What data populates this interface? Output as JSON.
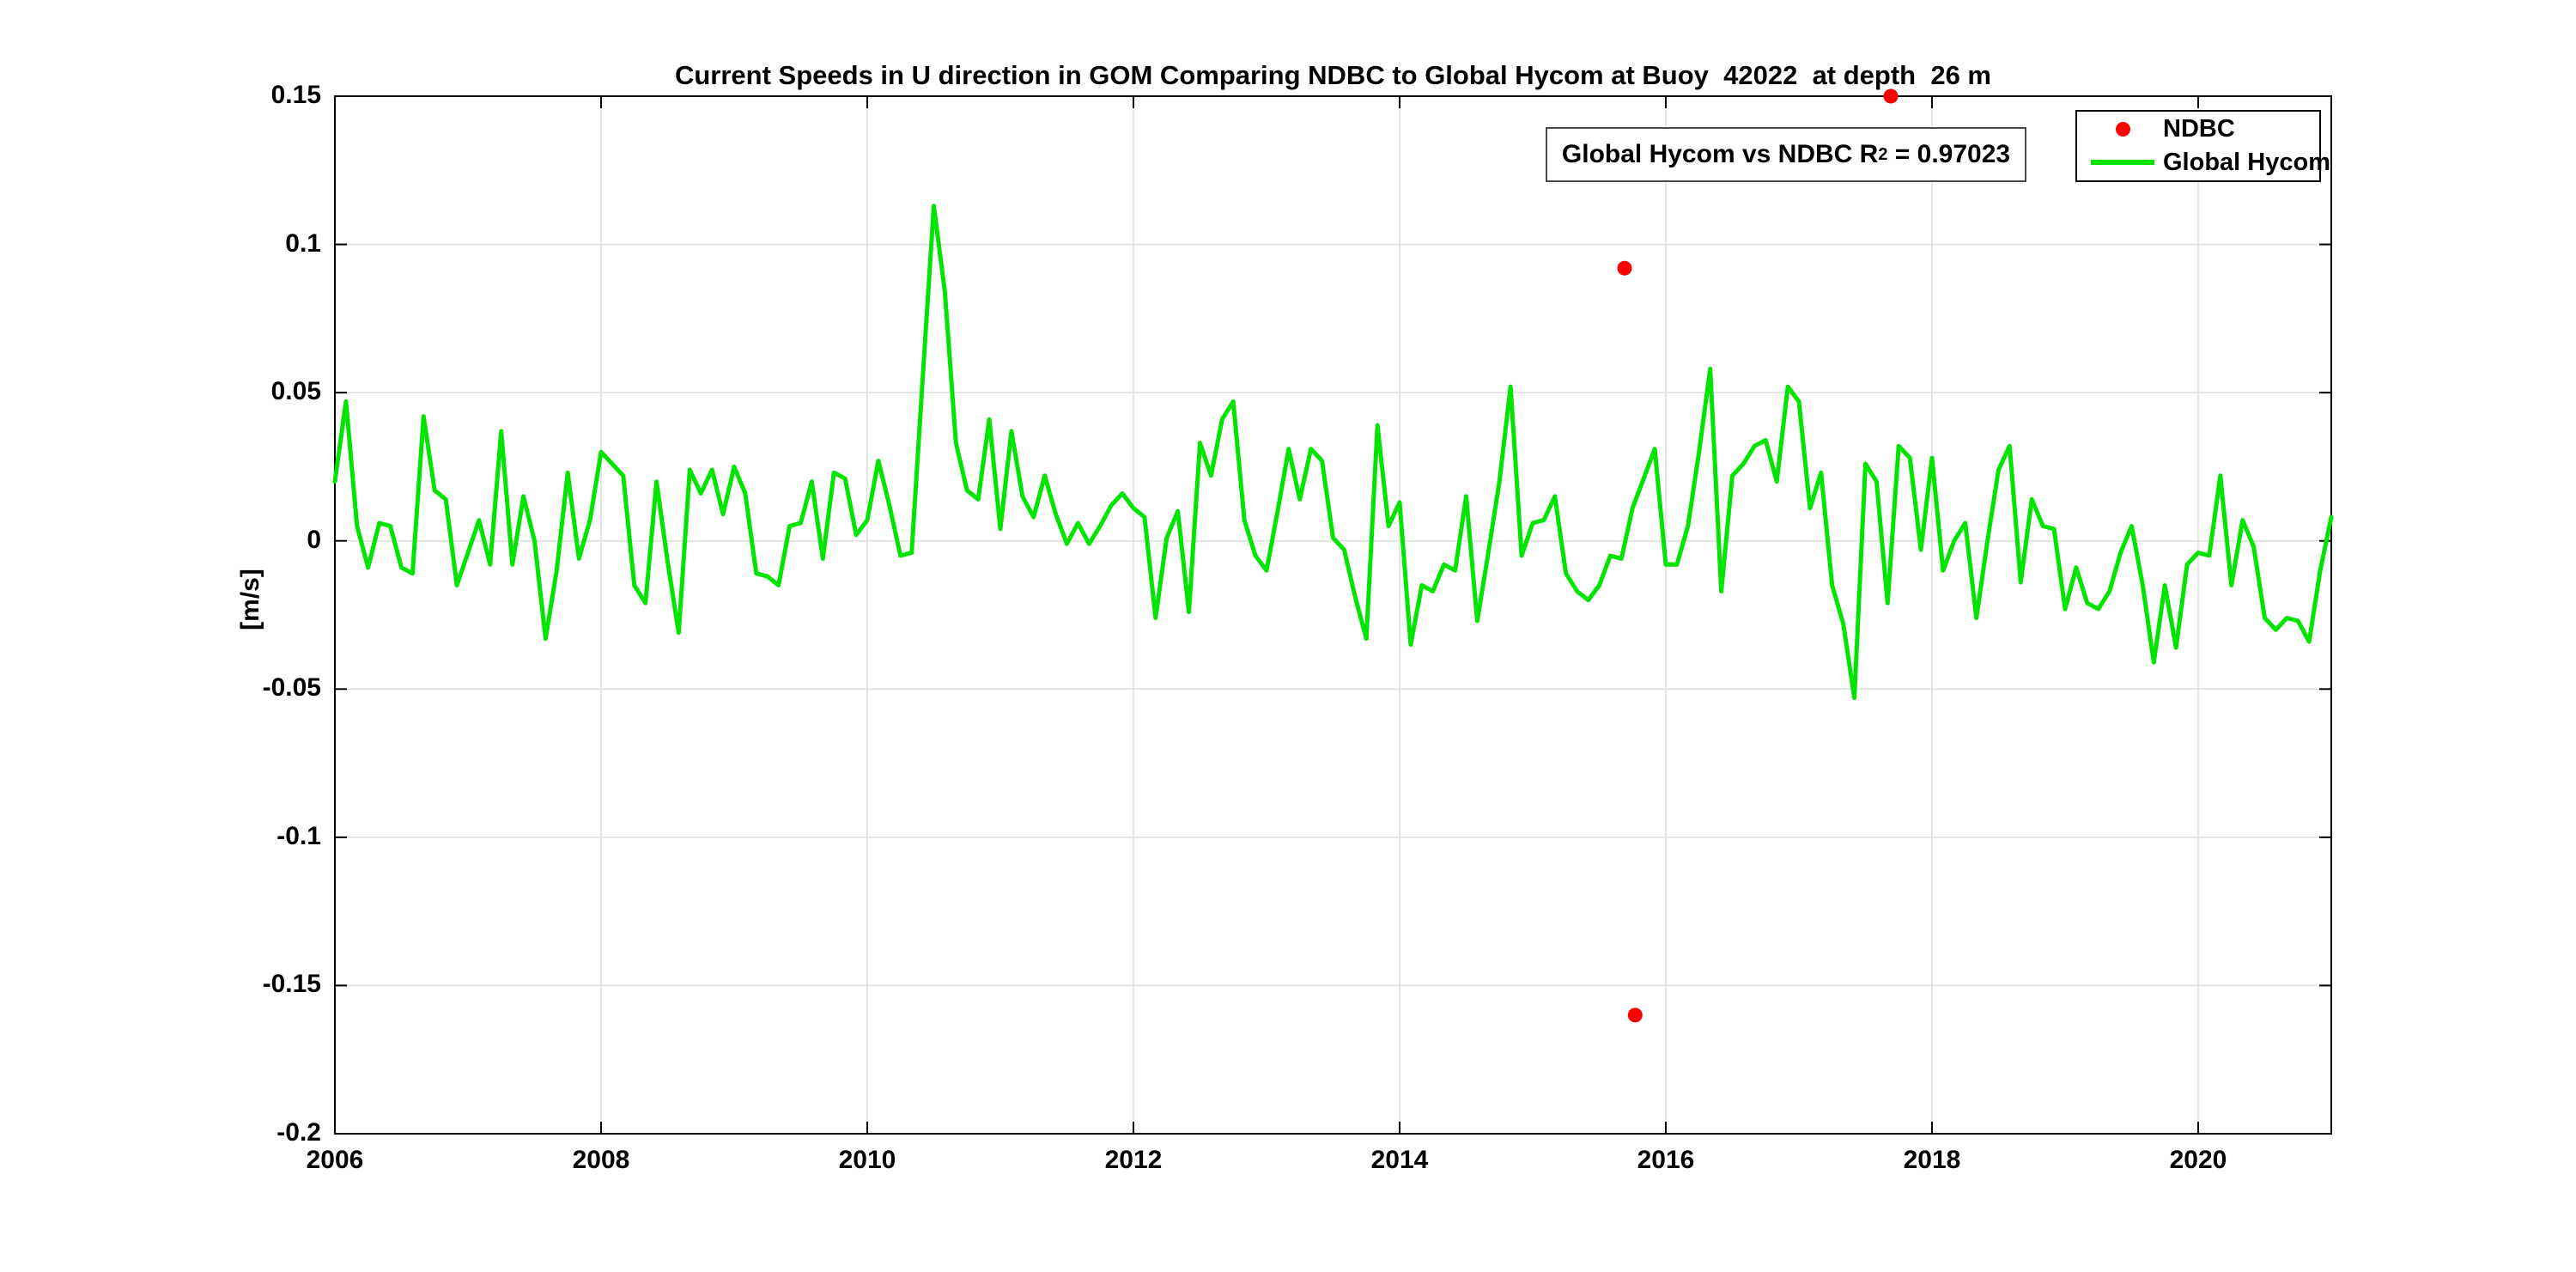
{
  "title": "Current Speeds in U direction in GOM Comparing NDBC to Global Hycom at Buoy  42022  at depth  26 m",
  "annotation": {
    "prefix": "Global Hycom vs NDBC R",
    "sup": "2",
    "suffix": " = 0.97023"
  },
  "legend": {
    "position": "upper right",
    "items": [
      {
        "label": "NDBC",
        "marker": "dot",
        "color": "#ff0000"
      },
      {
        "label": "Global Hycom",
        "marker": "line",
        "color": "#00e400"
      }
    ]
  },
  "axes": {
    "ylabel": "[m/s]",
    "x_ticks": [
      2006,
      2008,
      2010,
      2012,
      2014,
      2016,
      2018,
      2020
    ],
    "x_tick_labels": [
      "2006",
      "2008",
      "2010",
      "2012",
      "2014",
      "2016",
      "2018",
      "2020"
    ],
    "y_ticks": [
      -0.2,
      -0.15,
      -0.1,
      -0.05,
      0,
      0.05,
      0.1,
      0.15
    ],
    "y_tick_labels": [
      "-0.2",
      "-0.15",
      "-0.1",
      "-0.05",
      "0",
      "0.05",
      "0.1",
      "0.15"
    ],
    "grid_color": "#dedede",
    "axis_color": "#000000"
  },
  "chart_data": {
    "type": "line",
    "title": "Current Speeds in U direction in GOM Comparing NDBC to Global Hycom at Buoy  42022  at depth  26 m",
    "xlabel": "",
    "ylabel": "[m/s]",
    "xlim": [
      2006,
      2021
    ],
    "ylim": [
      -0.2,
      0.15
    ],
    "grid": true,
    "legend_position": "upper right",
    "r_squared": 0.97023,
    "series": [
      {
        "name": "Global Hycom",
        "type": "line",
        "color": "#00e400",
        "x_start": 2006.0,
        "x_step": 0.0833333,
        "values": [
          0.02,
          0.047,
          0.005,
          -0.009,
          0.006,
          0.005,
          -0.009,
          -0.011,
          0.042,
          0.017,
          0.014,
          -0.015,
          -0.004,
          0.007,
          -0.008,
          0.037,
          -0.008,
          0.015,
          0.0,
          -0.033,
          -0.01,
          0.023,
          -0.006,
          0.007,
          0.03,
          0.026,
          0.022,
          -0.015,
          -0.021,
          0.02,
          -0.007,
          -0.031,
          0.024,
          0.016,
          0.024,
          0.009,
          0.025,
          0.016,
          -0.011,
          -0.012,
          -0.015,
          0.005,
          0.006,
          0.02,
          -0.006,
          0.023,
          0.021,
          0.002,
          0.007,
          0.027,
          0.012,
          -0.005,
          -0.004,
          0.055,
          0.113,
          0.084,
          0.033,
          0.017,
          0.014,
          0.041,
          0.004,
          0.037,
          0.015,
          0.008,
          0.022,
          0.009,
          -0.001,
          0.006,
          -0.001,
          0.005,
          0.012,
          0.016,
          0.011,
          0.008,
          -0.026,
          0.001,
          0.01,
          -0.024,
          0.033,
          0.022,
          0.041,
          0.047,
          0.007,
          -0.005,
          -0.01,
          0.01,
          0.031,
          0.014,
          0.031,
          0.027,
          0.001,
          -0.003,
          -0.019,
          -0.033,
          0.039,
          0.005,
          0.013,
          -0.035,
          -0.015,
          -0.017,
          -0.008,
          -0.01,
          0.015,
          -0.027,
          -0.004,
          0.02,
          0.052,
          -0.005,
          0.006,
          0.007,
          0.015,
          -0.011,
          -0.017,
          -0.02,
          -0.015,
          -0.005,
          -0.006,
          0.011,
          0.021,
          0.031,
          -0.008,
          -0.008,
          0.005,
          0.03,
          0.058,
          -0.017,
          0.022,
          0.026,
          0.032,
          0.034,
          0.02,
          0.052,
          0.047,
          0.011,
          0.023,
          -0.015,
          -0.028,
          -0.053,
          0.026,
          0.02,
          -0.021,
          0.032,
          0.028,
          -0.003,
          0.028,
          -0.01,
          0.0,
          0.006,
          -0.026,
          0.0,
          0.024,
          0.032,
          -0.014,
          0.014,
          0.005,
          0.004,
          -0.023,
          -0.009,
          -0.021,
          -0.023,
          -0.017,
          -0.004,
          0.005,
          -0.015,
          -0.041,
          -0.015,
          -0.036,
          -0.008,
          -0.004,
          -0.005,
          0.022,
          -0.015,
          0.007,
          -0.002,
          -0.026,
          -0.03,
          -0.026,
          -0.027,
          -0.034,
          -0.01,
          0.008
        ]
      },
      {
        "name": "NDBC",
        "type": "scatter",
        "color": "#ff0000",
        "x": [
          2015.69,
          2015.77,
          2017.69
        ],
        "y": [
          0.092,
          -0.16,
          0.15
        ]
      }
    ]
  }
}
